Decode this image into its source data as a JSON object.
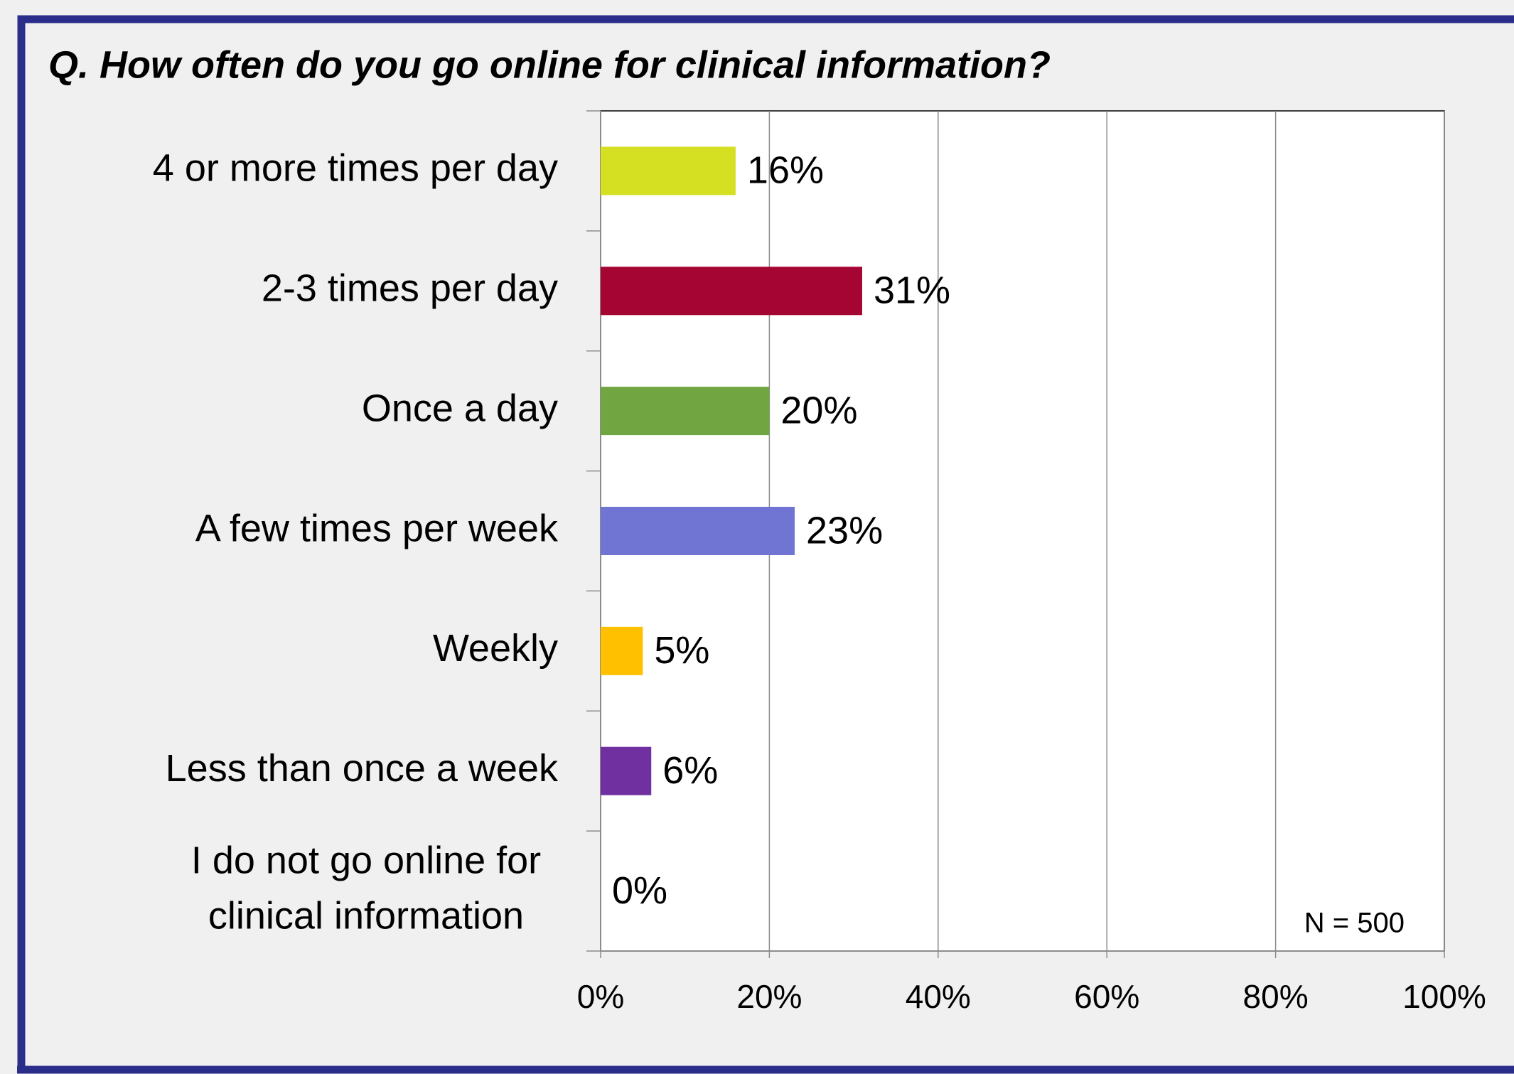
{
  "chart_data": {
    "type": "bar",
    "orientation": "horizontal",
    "title": "Q. How often do you go online for clinical information?",
    "categories": [
      "4 or more times per day",
      "2-3 times per day",
      "Once a day",
      "A few times per week",
      "Weekly",
      "Less than once a week",
      "I do not go online for\nclinical information"
    ],
    "values": [
      16,
      31,
      20,
      23,
      5,
      6,
      0
    ],
    "value_labels": [
      "16%",
      "31%",
      "20%",
      "23%",
      "5%",
      "6%",
      "0%"
    ],
    "colors": [
      "#d4e021",
      "#a50533",
      "#70a542",
      "#7074d2",
      "#ffc000",
      "#7030a0",
      "#888888"
    ],
    "xlim": [
      0,
      100
    ],
    "xticks": [
      {
        "value": 0,
        "label": "0%"
      },
      {
        "value": 20,
        "label": "20%"
      },
      {
        "value": 40,
        "label": "40%"
      },
      {
        "value": 60,
        "label": "60%"
      },
      {
        "value": 80,
        "label": "80%"
      },
      {
        "value": 100,
        "label": "100%"
      }
    ],
    "grid": true,
    "annotation": "N = 500"
  }
}
